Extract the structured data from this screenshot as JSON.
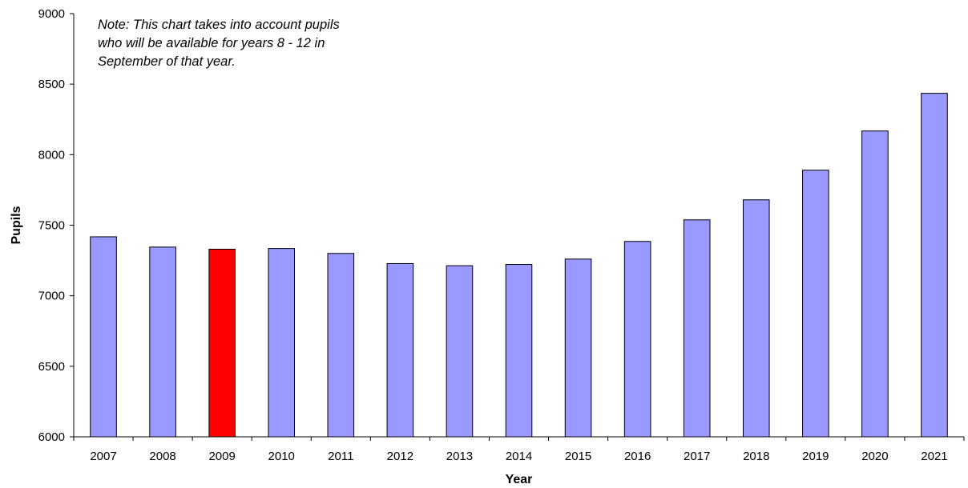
{
  "chart_data": {
    "type": "bar",
    "categories": [
      "2007",
      "2008",
      "2009",
      "2010",
      "2011",
      "2012",
      "2013",
      "2014",
      "2015",
      "2016",
      "2017",
      "2018",
      "2019",
      "2020",
      "2021"
    ],
    "values": [
      7418,
      7345,
      7330,
      7335,
      7300,
      7228,
      7213,
      7222,
      7260,
      7385,
      7538,
      7680,
      7890,
      8168,
      8435
    ],
    "highlight_index": 2,
    "title": "",
    "xlabel": "Year",
    "ylabel": "Pupils",
    "ylim": [
      6000,
      9000
    ],
    "yticks": [
      "6000",
      "6500",
      "7000",
      "7500",
      "8000",
      "8500",
      "9000"
    ],
    "grid": false,
    "legend": "none",
    "annotation": [
      "Note: This chart takes into account pupils",
      "who will be available for years 8 - 12 in",
      "September of that year."
    ],
    "colors": {
      "bar": "#9999ff",
      "highlight": "#ff0000",
      "bar_stroke": "#000000",
      "axis": "#000000"
    }
  }
}
